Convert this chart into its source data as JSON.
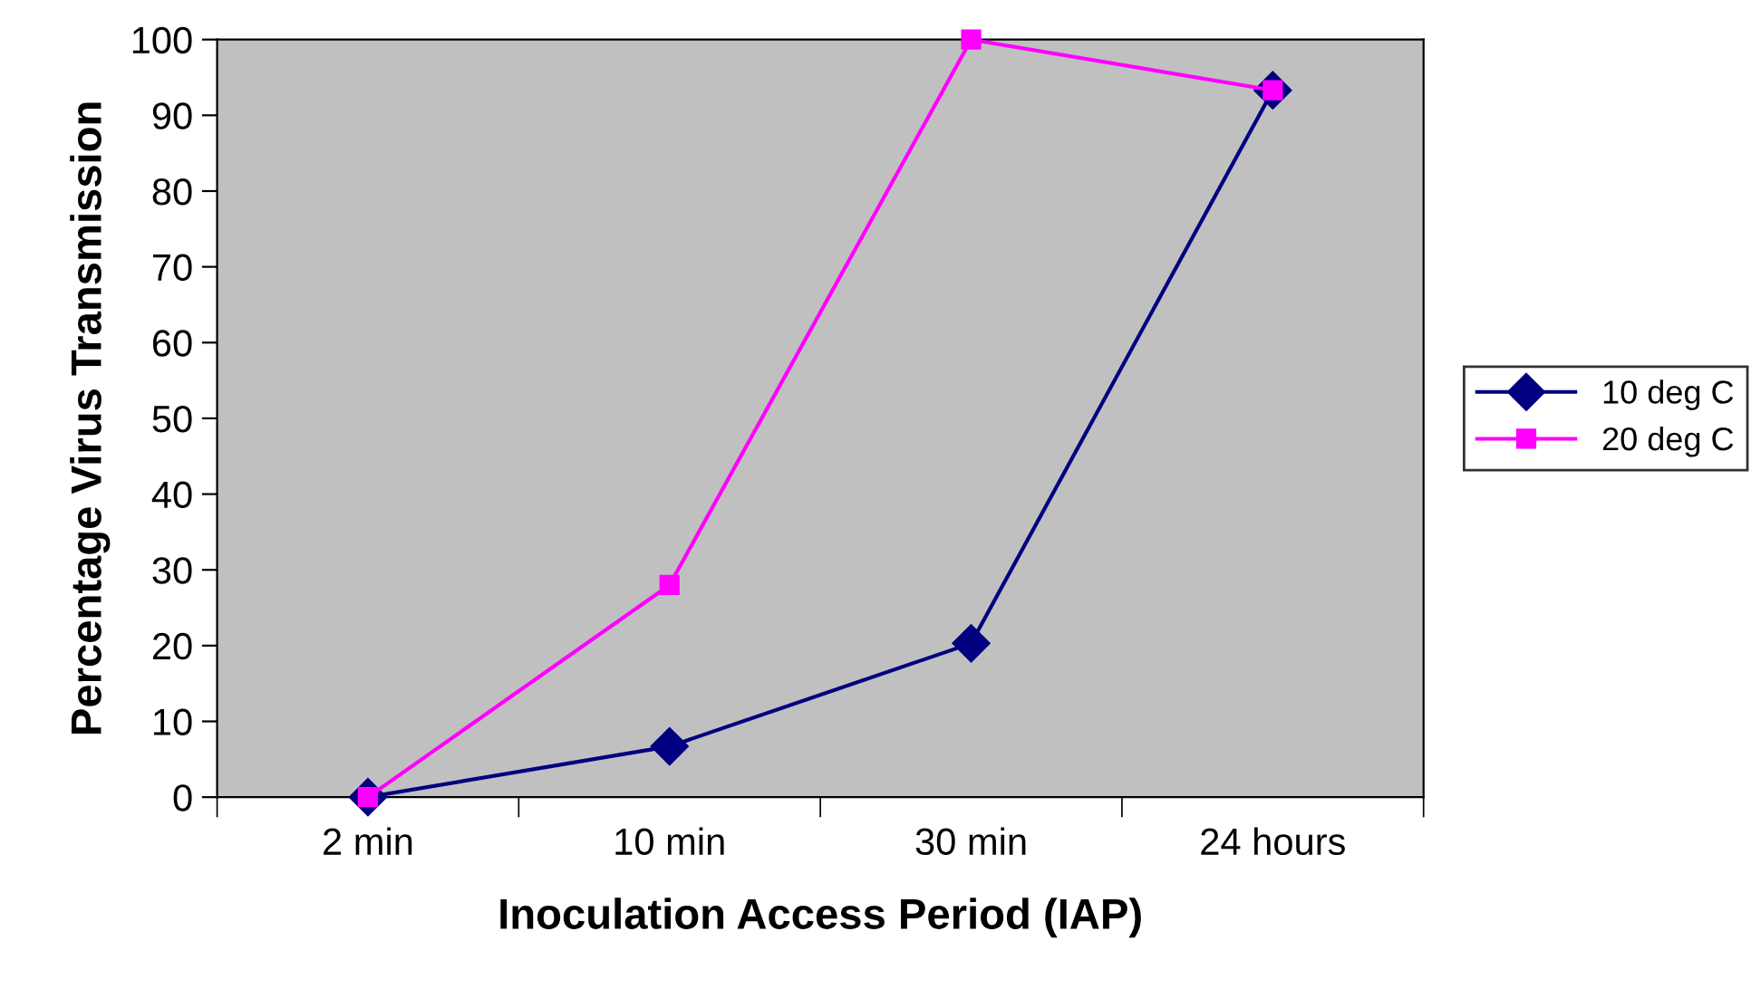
{
  "chart_data": {
    "type": "line",
    "xlabel": "Inoculation Access Period (IAP)",
    "ylabel": "Percentage Virus Transmission",
    "categories": [
      "2 min",
      "10 min",
      "30 min",
      "24 hours"
    ],
    "series": [
      {
        "name": "10 deg C",
        "color": "#000080",
        "marker": "diamond",
        "values": [
          0,
          6.7,
          20.3,
          93.3
        ]
      },
      {
        "name": "20 deg C",
        "color": "#ff00ff",
        "marker": "square",
        "values": [
          0,
          28,
          100,
          93.3
        ]
      }
    ],
    "ylim": [
      0,
      100
    ],
    "yticks": [
      0,
      10,
      20,
      30,
      40,
      50,
      60,
      70,
      80,
      90,
      100
    ],
    "grid": false,
    "legend": "right",
    "line_style": "solid"
  }
}
